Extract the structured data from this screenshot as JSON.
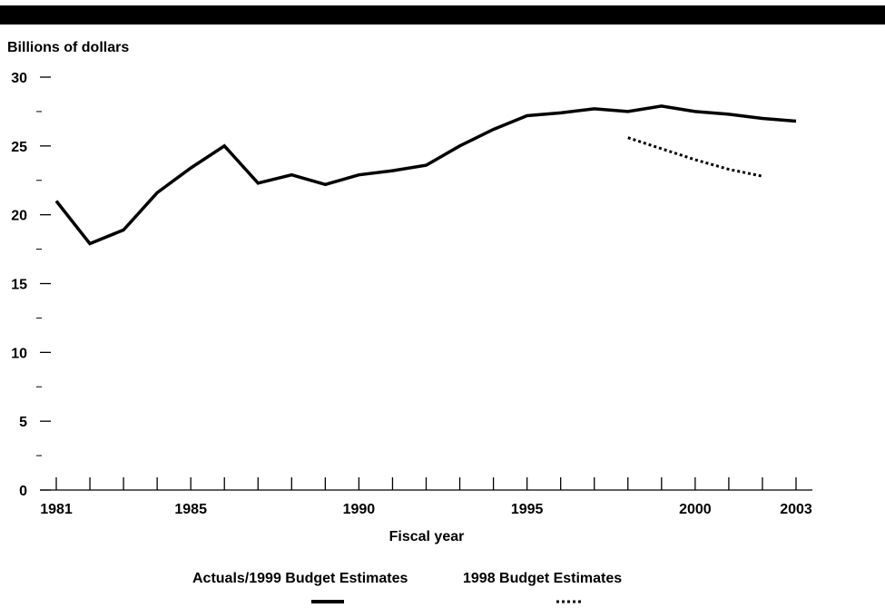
{
  "chart_data": {
    "type": "line",
    "title": "",
    "ylabel": "Billions of dollars",
    "xlabel": "Fiscal year",
    "ylim": [
      0,
      30
    ],
    "xlim": [
      1981,
      2003
    ],
    "y_ticks": [
      0,
      5,
      10,
      15,
      20,
      25,
      30
    ],
    "x_tick_labels": [
      1981,
      1985,
      1990,
      1995,
      2000,
      2003
    ],
    "grid": false,
    "legend_position": "bottom",
    "series": [
      {
        "name": "Actuals/1999 Budget Estimates",
        "style": "solid",
        "color": "#000000",
        "x": [
          1981,
          1982,
          1983,
          1984,
          1985,
          1986,
          1987,
          1988,
          1989,
          1990,
          1991,
          1992,
          1993,
          1994,
          1995,
          1996,
          1997,
          1998,
          1999,
          2000,
          2001,
          2002,
          2003
        ],
        "values": [
          21.0,
          17.9,
          18.9,
          21.6,
          23.4,
          25.0,
          22.3,
          22.9,
          22.2,
          22.9,
          23.2,
          23.6,
          25.0,
          26.2,
          27.2,
          27.4,
          27.7,
          27.5,
          27.9,
          27.5,
          27.3,
          27.0,
          26.8
        ]
      },
      {
        "name": "1998 Budget Estimates",
        "style": "dotted",
        "color": "#000000",
        "x": [
          1998,
          1999,
          2000,
          2001,
          2002
        ],
        "values": [
          25.6,
          24.8,
          24.0,
          23.3,
          22.8
        ]
      }
    ]
  }
}
